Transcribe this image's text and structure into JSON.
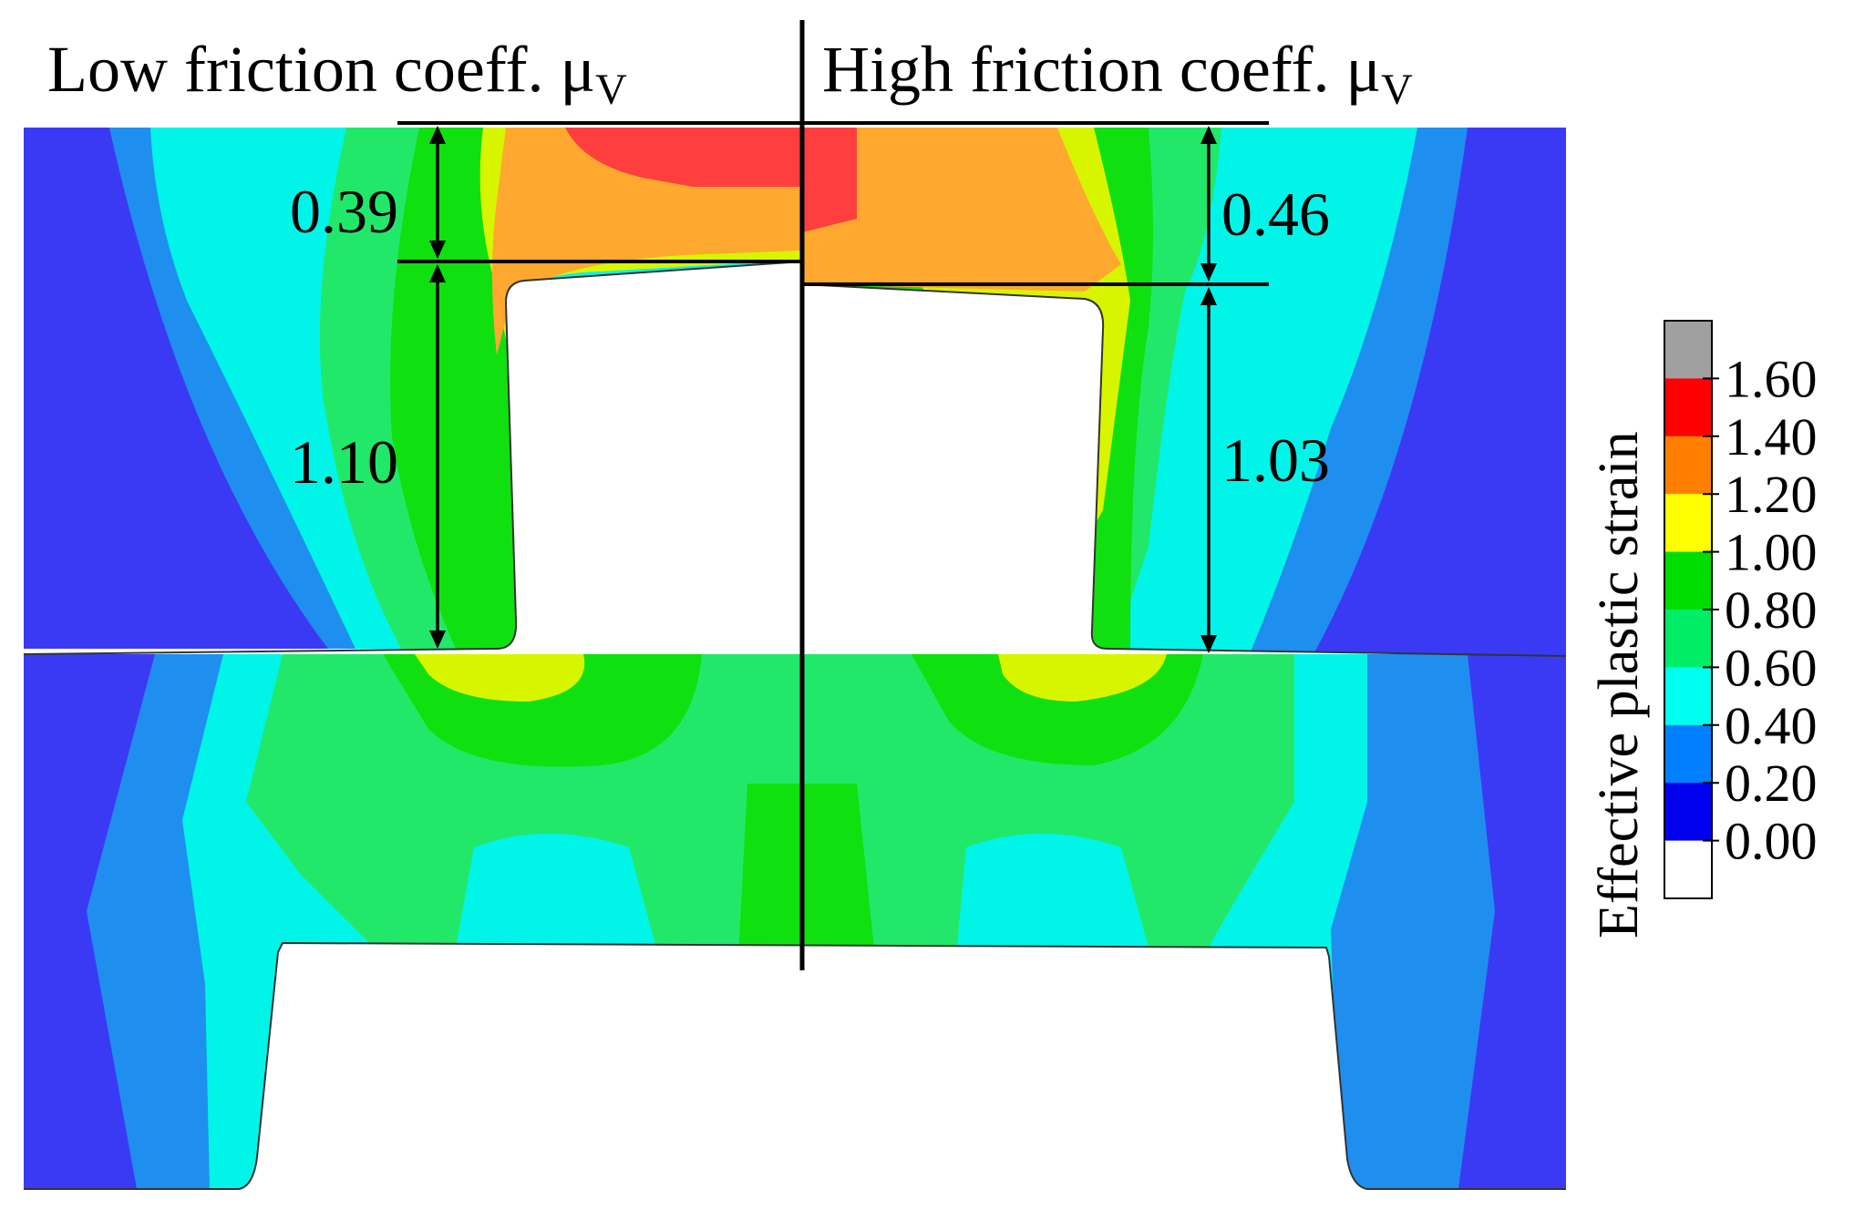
{
  "titles": {
    "left_prefix": "Low friction coeff. μ",
    "left_sub": "V",
    "right_prefix": "High friction coeff. μ",
    "right_sub": "V"
  },
  "dimensions": {
    "left_top": "0.39",
    "left_bottom": "1.10",
    "right_top": "0.46",
    "right_bottom": "1.03"
  },
  "legend": {
    "title": "Effective plastic strain",
    "ticks": [
      "1.60",
      "1.40",
      "1.20",
      "1.00",
      "0.80",
      "0.60",
      "0.40",
      "0.20",
      "0.00"
    ],
    "bands": [
      {
        "color": "#a0a0a0"
      },
      {
        "color": "#ff0000"
      },
      {
        "color": "#ff8000"
      },
      {
        "color": "#ffff00"
      },
      {
        "color": "#00dd00"
      },
      {
        "color": "#00ee66"
      },
      {
        "color": "#00ffee"
      },
      {
        "color": "#0080ff"
      },
      {
        "color": "#0000ee"
      },
      {
        "color": "#ffffff"
      }
    ]
  },
  "colors": {
    "strain_0_2": "#3a3af5",
    "strain_0_3": "#1f8fef",
    "strain_0_5": "#00f5e8",
    "strain_0_7": "#22e86a",
    "strain_0_9": "#10e010",
    "strain_1_1": "#d8f500",
    "strain_1_3": "#ffa830",
    "strain_1_5": "#ff3e3e"
  }
}
